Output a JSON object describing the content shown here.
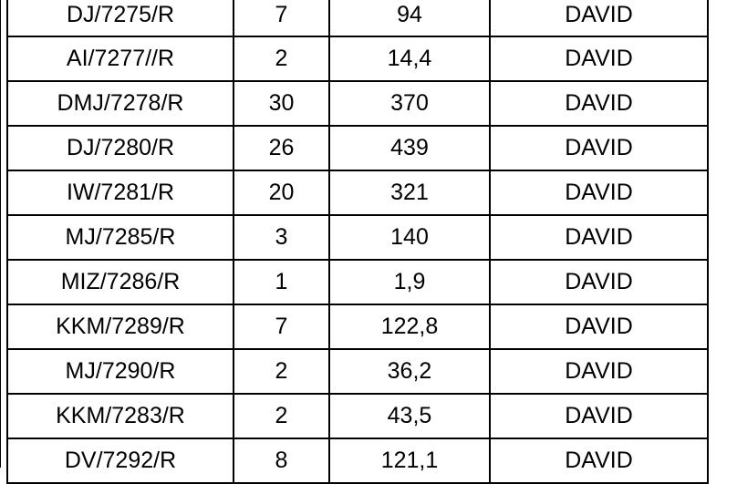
{
  "table": {
    "rows": [
      {
        "code": "DJ/7275/R",
        "qty": "7",
        "amount": "94",
        "name": "DAVID"
      },
      {
        "code": "AI/7277//R",
        "qty": "2",
        "amount": "14,4",
        "name": "DAVID"
      },
      {
        "code": "DMJ/7278/R",
        "qty": "30",
        "amount": "370",
        "name": "DAVID"
      },
      {
        "code": "DJ/7280/R",
        "qty": "26",
        "amount": "439",
        "name": "DAVID"
      },
      {
        "code": "IW/7281/R",
        "qty": "20",
        "amount": "321",
        "name": "DAVID"
      },
      {
        "code": "MJ/7285/R",
        "qty": "3",
        "amount": "140",
        "name": "DAVID"
      },
      {
        "code": "MIZ/7286/R",
        "qty": "1",
        "amount": "1,9",
        "name": "DAVID"
      },
      {
        "code": "KKM/7289/R",
        "qty": "7",
        "amount": "122,8",
        "name": "DAVID"
      },
      {
        "code": "MJ/7290/R",
        "qty": "2",
        "amount": "36,2",
        "name": "DAVID"
      },
      {
        "code": "KKM/7283/R",
        "qty": "2",
        "amount": "43,5",
        "name": "DAVID"
      },
      {
        "code": "DV/7292/R",
        "qty": "8",
        "amount": "121,1",
        "name": "DAVID"
      }
    ]
  }
}
